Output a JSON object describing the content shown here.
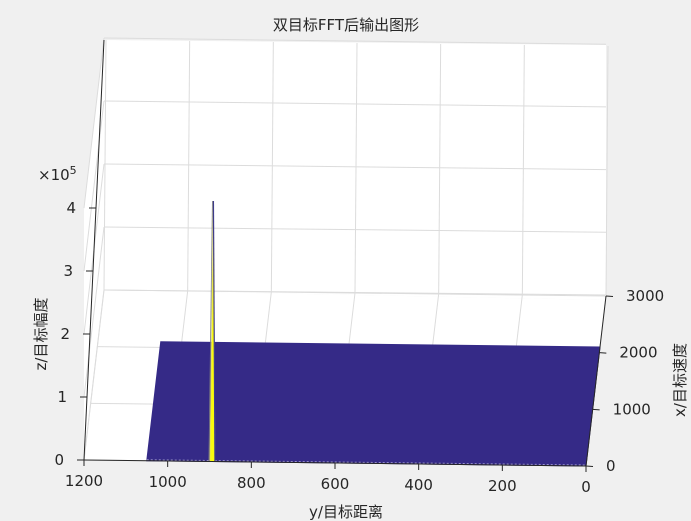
{
  "chart_data": {
    "type": "surface",
    "title": "双目标FFT后输出图形",
    "xlabel": "x/目标速度",
    "ylabel": "y/目标距离",
    "zlabel": "z/目标幅度",
    "z_exponent_label": "×10",
    "z_exponent_power": "5",
    "x_ticks": [
      "0",
      "1000",
      "2000",
      "3000"
    ],
    "y_ticks": [
      "1200",
      "1000",
      "800",
      "600",
      "400",
      "200",
      "0"
    ],
    "z_ticks": [
      "0",
      "1",
      "2",
      "3",
      "4"
    ],
    "xlim": [
      0,
      3000
    ],
    "ylim": [
      0,
      1200
    ],
    "zlim": [
      0,
      600000
    ],
    "grid": true,
    "surface_extent": {
      "y_range": [
        0,
        1050
      ],
      "x_range": [
        0,
        2100
      ]
    },
    "peaks": [
      {
        "y": 893,
        "x": 150,
        "z": 360000,
        "color": "#f5f56e"
      },
      {
        "y": 893,
        "x": 0,
        "z": 0,
        "color": "#f5f56e"
      }
    ],
    "colors": {
      "surface": "#352a87",
      "peak": "#f9fb0e",
      "grid": "#dcdcdc",
      "axis": "#262626",
      "background": "#f0f0f0",
      "plot_bg": "#ffffff"
    }
  }
}
